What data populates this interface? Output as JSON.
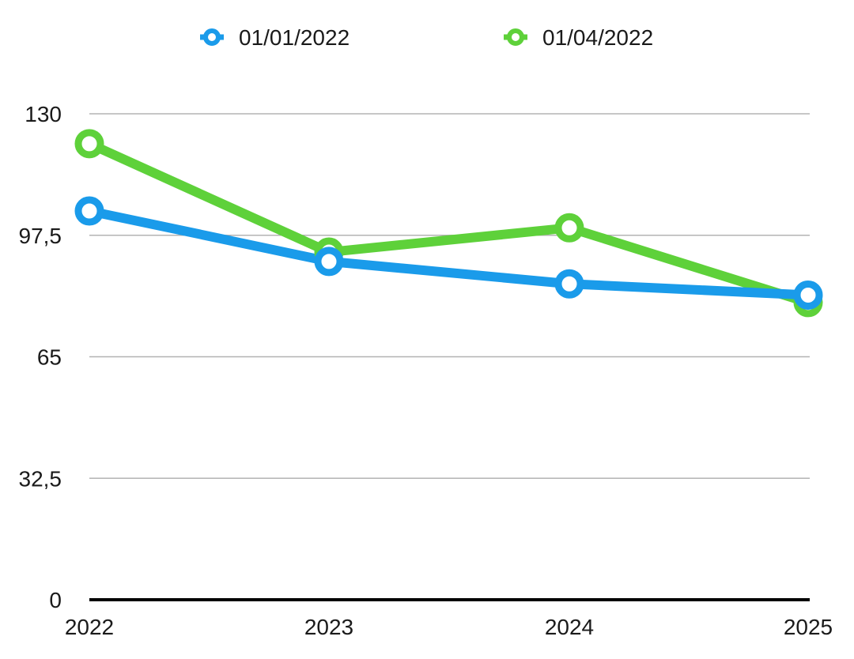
{
  "chart_data": {
    "type": "line",
    "title": "",
    "xlabel": "",
    "ylabel": "",
    "categories": [
      "2022",
      "2023",
      "2024",
      "2025"
    ],
    "series": [
      {
        "name": "01/01/2022",
        "values": [
          104,
          90.5,
          84.5,
          81.5
        ],
        "color": "#1A9BEA"
      },
      {
        "name": "01/04/2022",
        "values": [
          122,
          93,
          99.5,
          79.5
        ],
        "color": "#5ED13A"
      }
    ],
    "ylim": [
      0,
      130
    ],
    "y_ticks": [
      "0",
      "32,5",
      "65",
      "97,5",
      "130"
    ],
    "y_tick_values": [
      0,
      32.5,
      65,
      97.5,
      130
    ],
    "grid": true,
    "legend_position": "top"
  }
}
